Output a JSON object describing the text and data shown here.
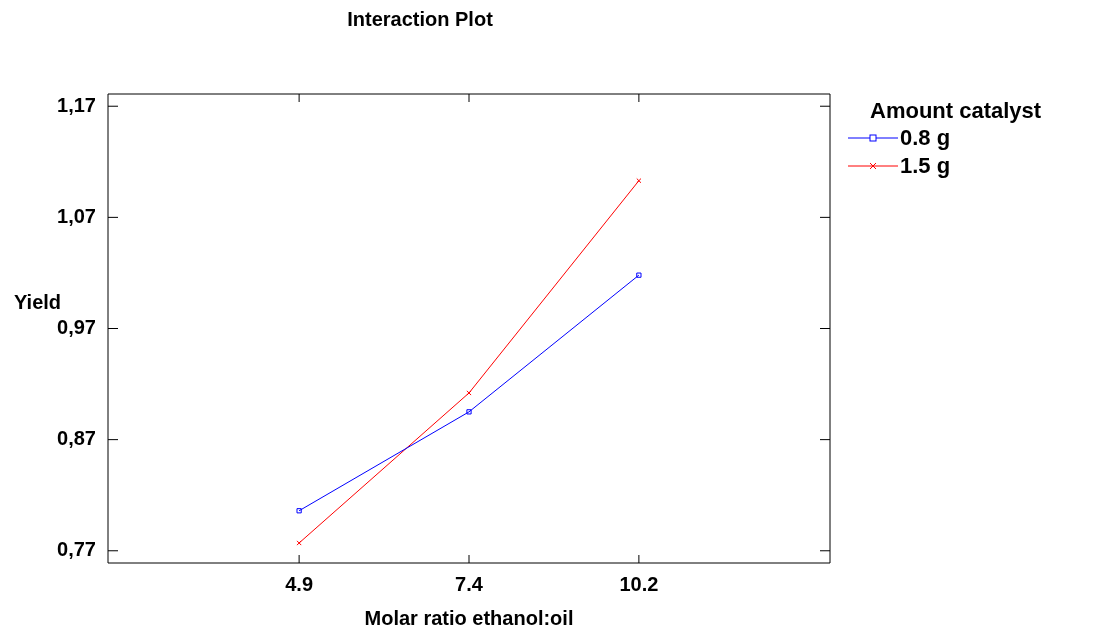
{
  "chart_data": {
    "type": "line",
    "title": "Interaction Plot",
    "xlabel": "Molar ratio ethanol:oil",
    "ylabel": "Yield",
    "legend_title": "Amount catalyst",
    "legend": "top right",
    "grid": false,
    "categories": [
      "4.9",
      "7.4",
      "10.2"
    ],
    "ylim": [
      0.759,
      1.181
    ],
    "yticks": [
      {
        "value": 0.77,
        "label": "0,77"
      },
      {
        "value": 0.87,
        "label": "0,87"
      },
      {
        "value": 0.97,
        "label": "0,97"
      },
      {
        "value": 1.07,
        "label": "1,07"
      },
      {
        "value": 1.17,
        "label": "1,17"
      }
    ],
    "series": [
      {
        "name": "0.8 g",
        "color": "#0000ff",
        "marker": "square",
        "values": [
          0.806,
          0.895,
          1.018
        ]
      },
      {
        "name": "1.5 g",
        "color": "#ff0000",
        "marker": "cross",
        "values": [
          0.777,
          0.912,
          1.103
        ]
      }
    ]
  }
}
